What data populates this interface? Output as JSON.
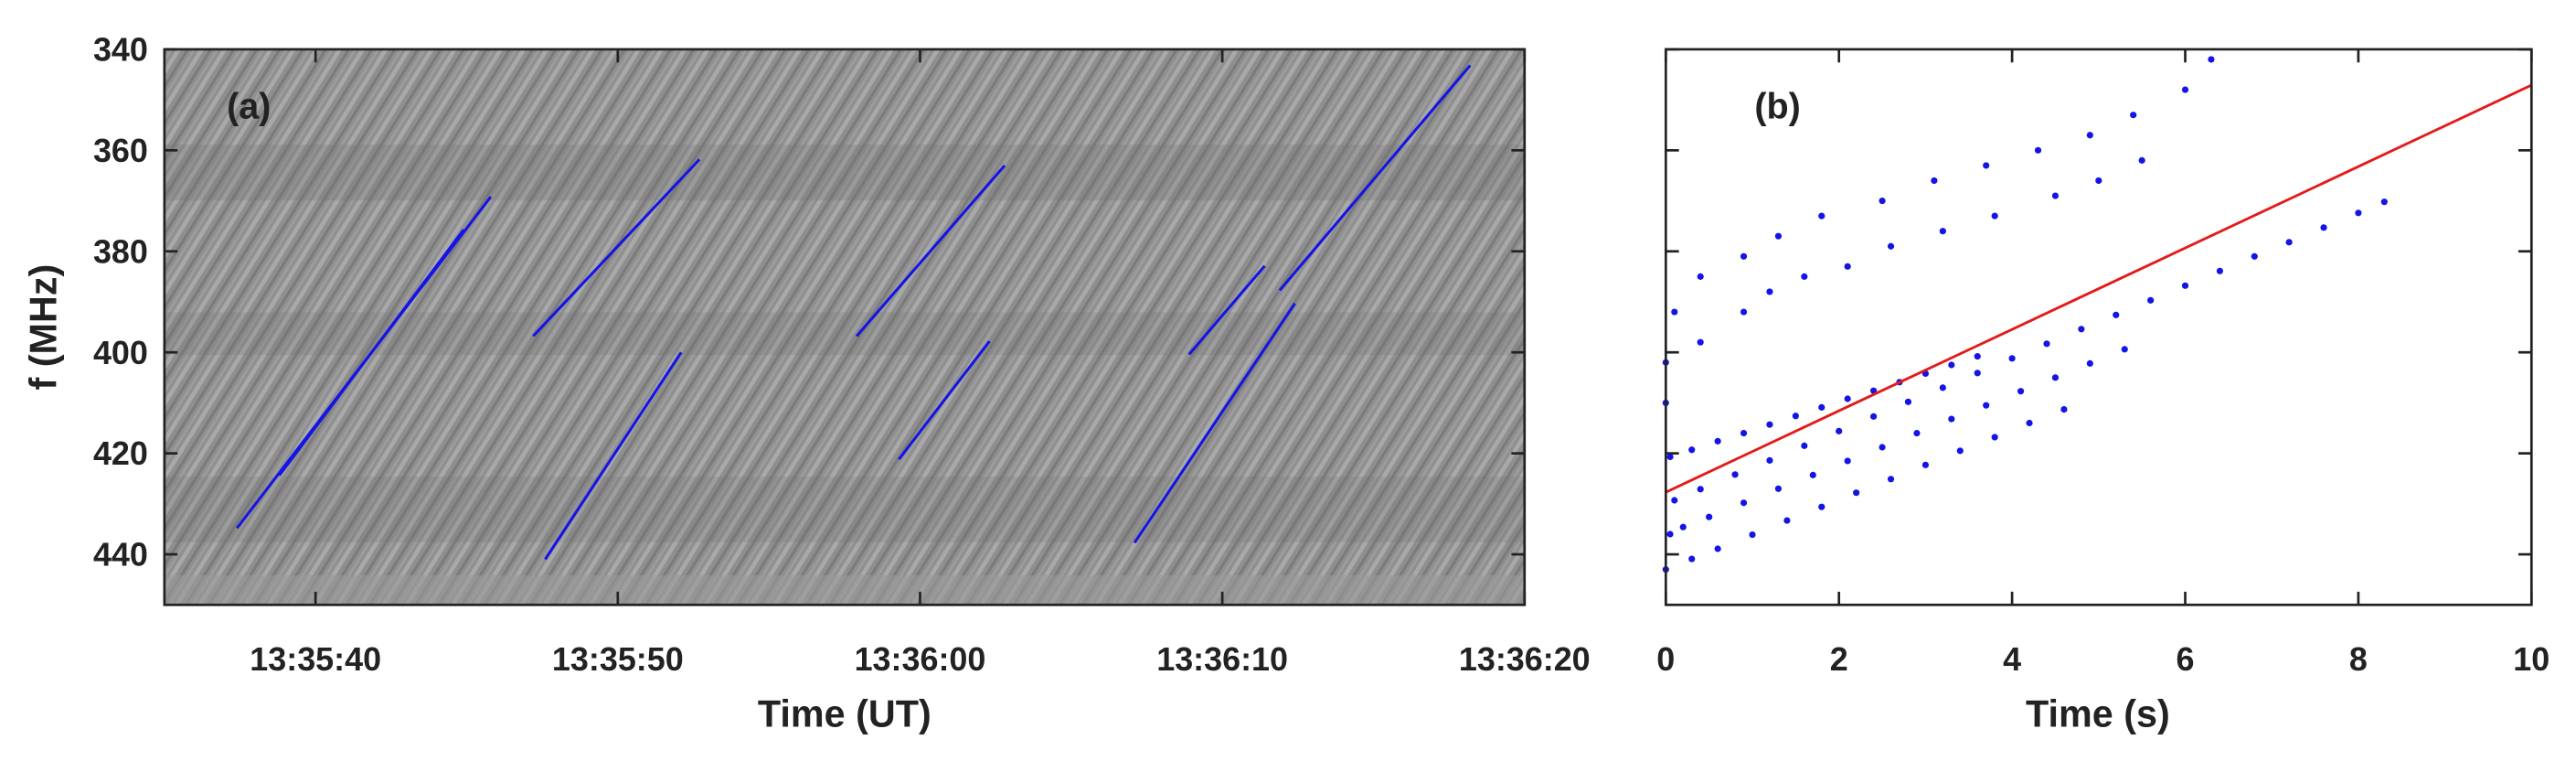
{
  "chart_data": [
    {
      "type": "spectrogram",
      "annotation": "(a)",
      "xlabel": "Time (UT)",
      "ylabel": "f (MHz)",
      "xlim": [
        "13:35:35",
        "13:36:20"
      ],
      "xticks": [
        "13:35:40",
        "13:35:50",
        "13:36:00",
        "13:36:10",
        "13:36:20"
      ],
      "ylim": [
        340,
        450
      ],
      "y_reversed": true,
      "yticks": [
        340,
        360,
        380,
        400,
        420,
        440
      ],
      "color": "#1414e6",
      "segments": [
        {
          "x": [
            "13:35:37.4",
            "13:35:45.8"
          ],
          "values": [
            434.8,
            369.2
          ]
        },
        {
          "x": [
            "13:35:38.8",
            "13:35:44.9"
          ],
          "values": [
            424.4,
            375.7
          ]
        },
        {
          "x": [
            "13:35:47.2",
            "13:35:52.7"
          ],
          "values": [
            396.8,
            361.8
          ]
        },
        {
          "x": [
            "13:35:47.6",
            "13:35:52.1"
          ],
          "values": [
            441,
            400
          ]
        },
        {
          "x": [
            "13:35:57.9",
            "13:36:02.8"
          ],
          "values": [
            396.8,
            363
          ]
        },
        {
          "x": [
            "13:35:59.3",
            "13:36:02.3"
          ],
          "values": [
            421.2,
            397.8
          ]
        },
        {
          "x": [
            "13:36:07.1",
            "13:36:12.4"
          ],
          "values": [
            437.7,
            390.3
          ]
        },
        {
          "x": [
            "13:36:08.9",
            "13:36:11.4"
          ],
          "values": [
            400.4,
            382.9
          ]
        },
        {
          "x": [
            "13:36:11.9",
            "13:36:18.2"
          ],
          "values": [
            387.7,
            343.2
          ]
        }
      ]
    },
    {
      "type": "scatter",
      "annotation": "(b)",
      "xlabel": "Time (s)",
      "xlim": [
        0,
        10
      ],
      "xticks": [
        0,
        2,
        4,
        6,
        8,
        10
      ],
      "ylim": [
        340,
        450
      ],
      "y_reversed": true,
      "color": "#1414e6",
      "x": [
        0.1,
        0.4,
        0.9,
        1.3,
        1.8,
        2.5,
        3.1,
        3.7,
        4.3,
        4.9,
        5.4,
        6.0,
        6.3,
        0.4,
        0.9,
        1.2,
        1.6,
        2.1,
        2.6,
        3.2,
        3.8,
        4.5,
        5.0,
        5.5,
        0.05,
        0.3,
        0.6,
        0.9,
        1.2,
        1.5,
        1.8,
        2.1,
        2.4,
        2.7,
        3.0,
        3.3,
        3.6,
        0.1,
        0.4,
        0.8,
        1.2,
        1.6,
        2.0,
        2.4,
        2.8,
        3.2,
        3.6,
        4.0,
        4.4,
        4.8,
        5.2,
        5.6,
        6.0,
        6.4,
        6.8,
        7.2,
        7.6,
        8.0,
        8.3,
        0.2,
        0.5,
        0.9,
        1.3,
        1.7,
        2.1,
        2.5,
        2.9,
        3.3,
        3.7,
        4.1,
        4.5,
        4.9,
        5.3,
        0.0,
        0.3,
        0.6,
        1.0,
        1.4,
        1.8,
        2.2,
        2.6,
        3.0,
        3.4,
        3.8,
        4.2,
        4.6,
        0.0,
        0.0,
        0.05
      ],
      "values": [
        392,
        385,
        381,
        377,
        373,
        370,
        366,
        363,
        360,
        357,
        353,
        348,
        342,
        398,
        392,
        388,
        385,
        383,
        379,
        376,
        373,
        369,
        366,
        362,
        420.7,
        419.3,
        417.6,
        416.0,
        414.3,
        412.6,
        410.9,
        409.2,
        407.6,
        405.9,
        404.2,
        402.5,
        400.8,
        429.3,
        427.1,
        424.2,
        421.4,
        418.5,
        415.6,
        412.7,
        409.8,
        407.0,
        404.1,
        401.2,
        398.3,
        395.4,
        392.6,
        389.7,
        386.8,
        383.9,
        381.0,
        378.2,
        375.3,
        372.4,
        370.2,
        434.6,
        432.6,
        429.8,
        427.0,
        424.3,
        421.5,
        418.8,
        416.0,
        413.2,
        410.5,
        407.7,
        405.0,
        402.2,
        399.4,
        443.0,
        440.9,
        438.9,
        436.1,
        433.3,
        430.6,
        427.8,
        425.1,
        422.3,
        419.5,
        416.8,
        414.0,
        411.3,
        402,
        410,
        436
      ],
      "fit": {
        "color": "#e41a1a",
        "x": [
          0,
          10
        ],
        "values": [
          427.7,
          347.1
        ]
      }
    }
  ]
}
